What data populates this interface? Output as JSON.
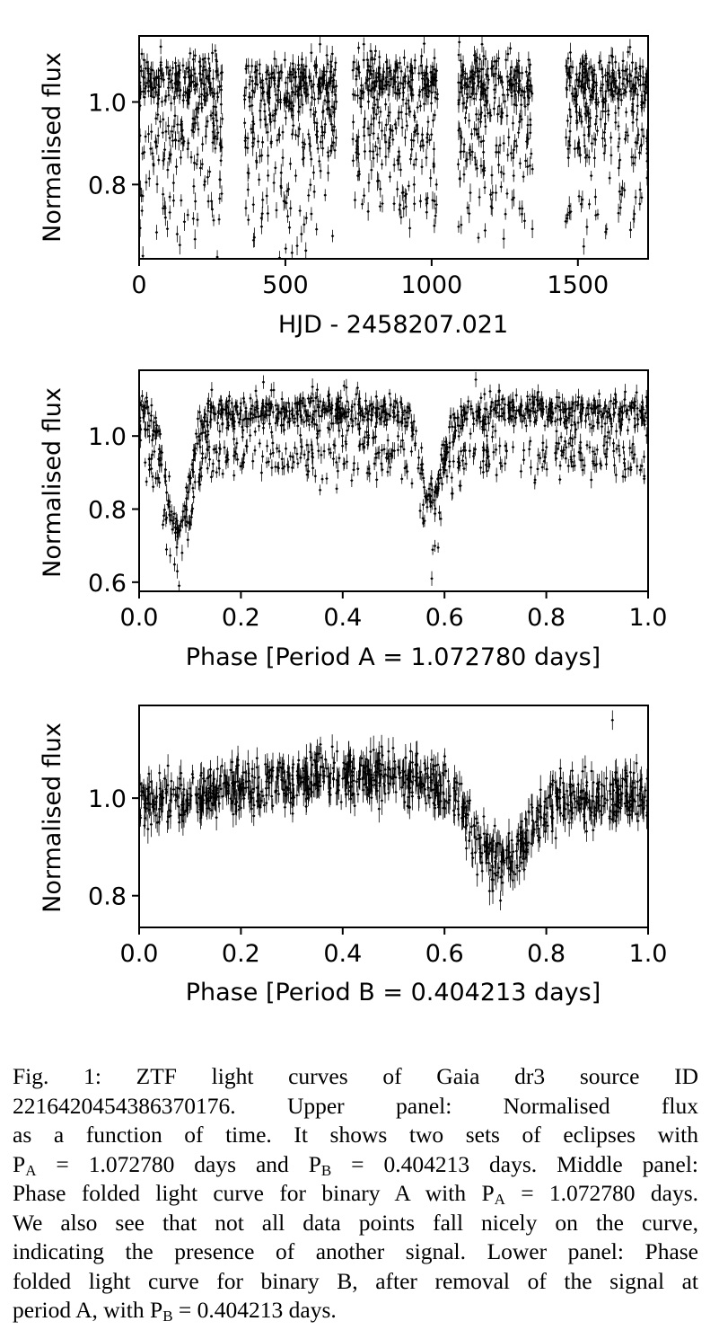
{
  "chart_data": [
    {
      "type": "scatter",
      "xlabel": "HJD - 2458207.021",
      "ylabel": "Normalised flux",
      "xlim": [
        0,
        1740
      ],
      "ylim": [
        0.62,
        1.16
      ],
      "xticks": [
        0,
        500,
        1000,
        1500
      ],
      "xtick_labels": [
        "0",
        "500",
        "1000",
        "1500"
      ],
      "yticks": [
        0.8,
        1.0
      ],
      "ytick_labels": [
        "0.8",
        "1.0"
      ],
      "error_bars": true,
      "marker_color": "#000000",
      "observing_seasons": [
        [
          0,
          285
        ],
        [
          360,
          675
        ],
        [
          730,
          1020
        ],
        [
          1090,
          1345
        ],
        [
          1455,
          1740
        ]
      ],
      "series": [
        {
          "x": [
            5,
            45,
            90,
            130,
            170,
            210,
            250,
            280,
            400,
            440,
            480,
            520,
            555,
            570,
            600,
            640,
            760,
            800,
            840,
            870,
            900,
            940,
            980,
            1010,
            1100,
            1140,
            1180,
            1220,
            1260,
            1300,
            1340,
            1480,
            1520,
            1560,
            1600,
            1640,
            1680,
            1720
          ],
          "y": [
            0.79,
            1.03,
            0.72,
            0.68,
            1.06,
            0.84,
            0.74,
            1.07,
            1.06,
            0.73,
            0.92,
            1.05,
            0.68,
            0.64,
            0.95,
            1.04,
            1.04,
            0.88,
            0.92,
            1.06,
            0.78,
            0.8,
            1.02,
            0.76,
            0.88,
            1.06,
            0.84,
            0.78,
            1.03,
            1.07,
            1.04,
            1.02,
            0.65,
            0.77,
            1.05,
            0.84,
            0.69,
            1.0
          ]
        }
      ]
    },
    {
      "type": "scatter",
      "xlabel": "Phase [Period A = 1.072780 days]",
      "ylabel": "Normalised flux",
      "xlim": [
        0.0,
        1.0
      ],
      "ylim": [
        0.575,
        1.18
      ],
      "xticks": [
        0.0,
        0.2,
        0.4,
        0.6,
        0.8,
        1.0
      ],
      "xtick_labels": [
        "0.0",
        "0.2",
        "0.4",
        "0.6",
        "0.8",
        "1.0"
      ],
      "yticks": [
        0.6,
        0.8,
        1.0
      ],
      "ytick_labels": [
        "0.6",
        "0.8",
        "1.0"
      ],
      "error_bars": true,
      "marker_color": "#000000",
      "series": [
        {
          "x": [
            0.0,
            0.02,
            0.04,
            0.06,
            0.075,
            0.09,
            0.1,
            0.12,
            0.15,
            0.2,
            0.3,
            0.4,
            0.5,
            0.54,
            0.56,
            0.575,
            0.59,
            0.61,
            0.64,
            0.7,
            0.8,
            0.9,
            1.0
          ],
          "y": [
            1.05,
            1.0,
            0.92,
            0.82,
            0.63,
            0.78,
            0.87,
            0.97,
            1.06,
            1.07,
            1.06,
            1.06,
            1.07,
            1.04,
            0.86,
            0.61,
            0.79,
            0.93,
            1.06,
            1.07,
            1.08,
            1.08,
            1.05
          ]
        }
      ]
    },
    {
      "type": "scatter",
      "xlabel": "Phase [Period B = 0.404213 days]",
      "ylabel": "Normalised flux",
      "xlim": [
        0.0,
        1.0
      ],
      "ylim": [
        0.735,
        1.19
      ],
      "xticks": [
        0.0,
        0.2,
        0.4,
        0.6,
        0.8,
        1.0
      ],
      "xtick_labels": [
        "0.0",
        "0.2",
        "0.4",
        "0.6",
        "0.8",
        "1.0"
      ],
      "yticks": [
        0.8,
        1.0
      ],
      "ytick_labels": [
        "0.8",
        "1.0"
      ],
      "error_bars": true,
      "marker_color": "#000000",
      "series": [
        {
          "x": [
            0.0,
            0.05,
            0.1,
            0.15,
            0.2,
            0.25,
            0.3,
            0.35,
            0.4,
            0.45,
            0.5,
            0.55,
            0.6,
            0.65,
            0.7,
            0.71,
            0.75,
            0.8,
            0.85,
            0.9,
            0.93,
            0.95,
            1.0
          ],
          "y": [
            1.03,
            1.04,
            1.02,
            1.0,
            0.98,
            0.99,
            1.0,
            1.02,
            1.04,
            1.05,
            1.03,
            1.0,
            0.98,
            0.93,
            0.89,
            0.79,
            0.9,
            0.95,
            1.01,
            1.03,
            1.16,
            1.04,
            1.04
          ]
        }
      ]
    }
  ],
  "caption": {
    "lines": [
      "Fig. 1: ZTF light curves of Gaia dr3 source ID",
      "2216420454386370176. Upper panel: Normalised flux",
      "as a function of time. It shows two sets of eclipses with",
      "@A = 1.072780 days and @B = 0.404213 days. Middle panel:",
      "Phase folded light curve for binary A with @A = 1.072780 days.",
      "We also see that not all data points fall nicely on the curve,",
      "indicating the presence of another signal. Lower panel: Phase",
      "folded light curve for binary B, after removal of the signal at",
      "period A, with @B = 0.404213 days."
    ]
  }
}
